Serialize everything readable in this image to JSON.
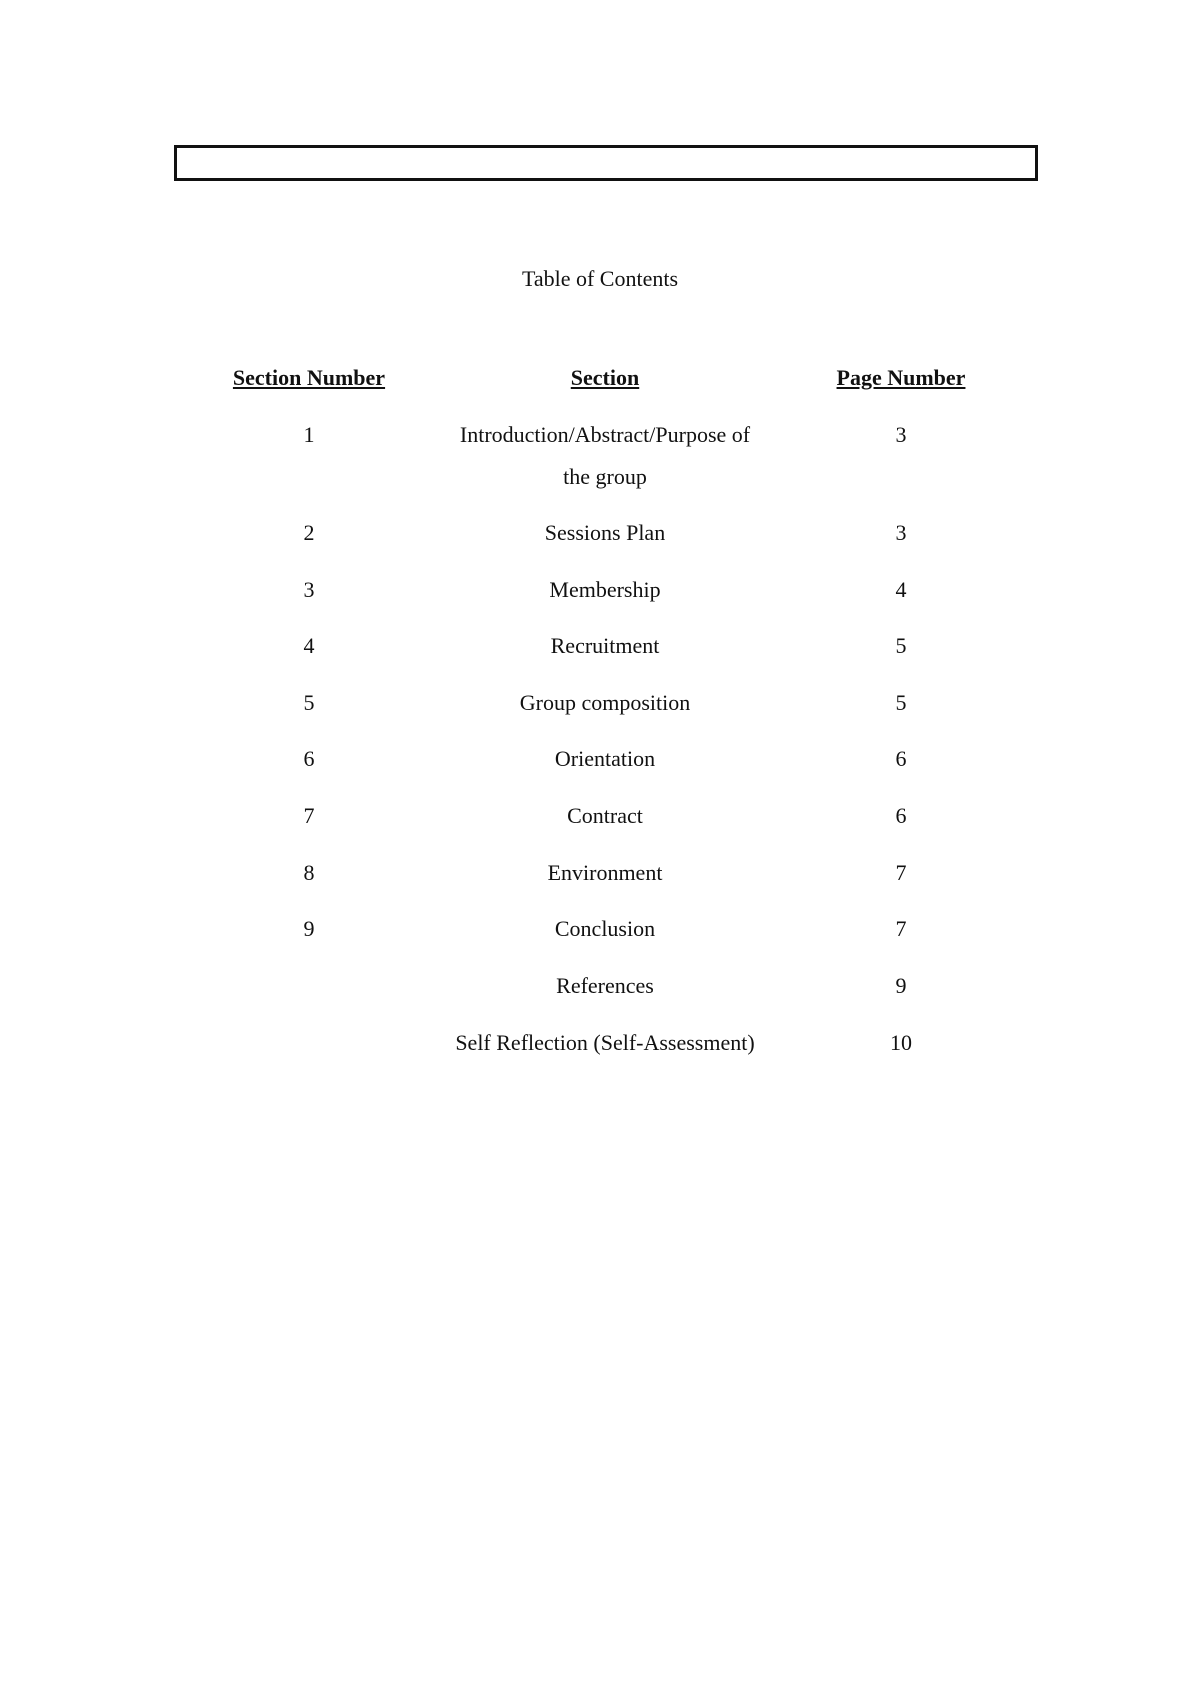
{
  "title": "Table of Contents",
  "headers": {
    "section_number": "Section Number",
    "section": "Section",
    "page_number": "Page Number"
  },
  "rows": [
    {
      "num": "1",
      "section": "Introduction/Abstract/Purpose of the group",
      "page": "3"
    },
    {
      "num": "2",
      "section": "Sessions Plan",
      "page": "3"
    },
    {
      "num": "3",
      "section": "Membership",
      "page": "4"
    },
    {
      "num": "4",
      "section": "Recruitment",
      "page": "5"
    },
    {
      "num": "5",
      "section": "Group composition",
      "page": "5"
    },
    {
      "num": "6",
      "section": "Orientation",
      "page": "6"
    },
    {
      "num": "7",
      "section": "Contract",
      "page": "6"
    },
    {
      "num": "8",
      "section": "Environment",
      "page": "7"
    },
    {
      "num": "9",
      "section": "Conclusion",
      "page": "7"
    },
    {
      "num": "",
      "section": "References",
      "page": "9"
    },
    {
      "num": "",
      "section": "Self Reflection (Self-Assessment)",
      "page": "10"
    }
  ]
}
